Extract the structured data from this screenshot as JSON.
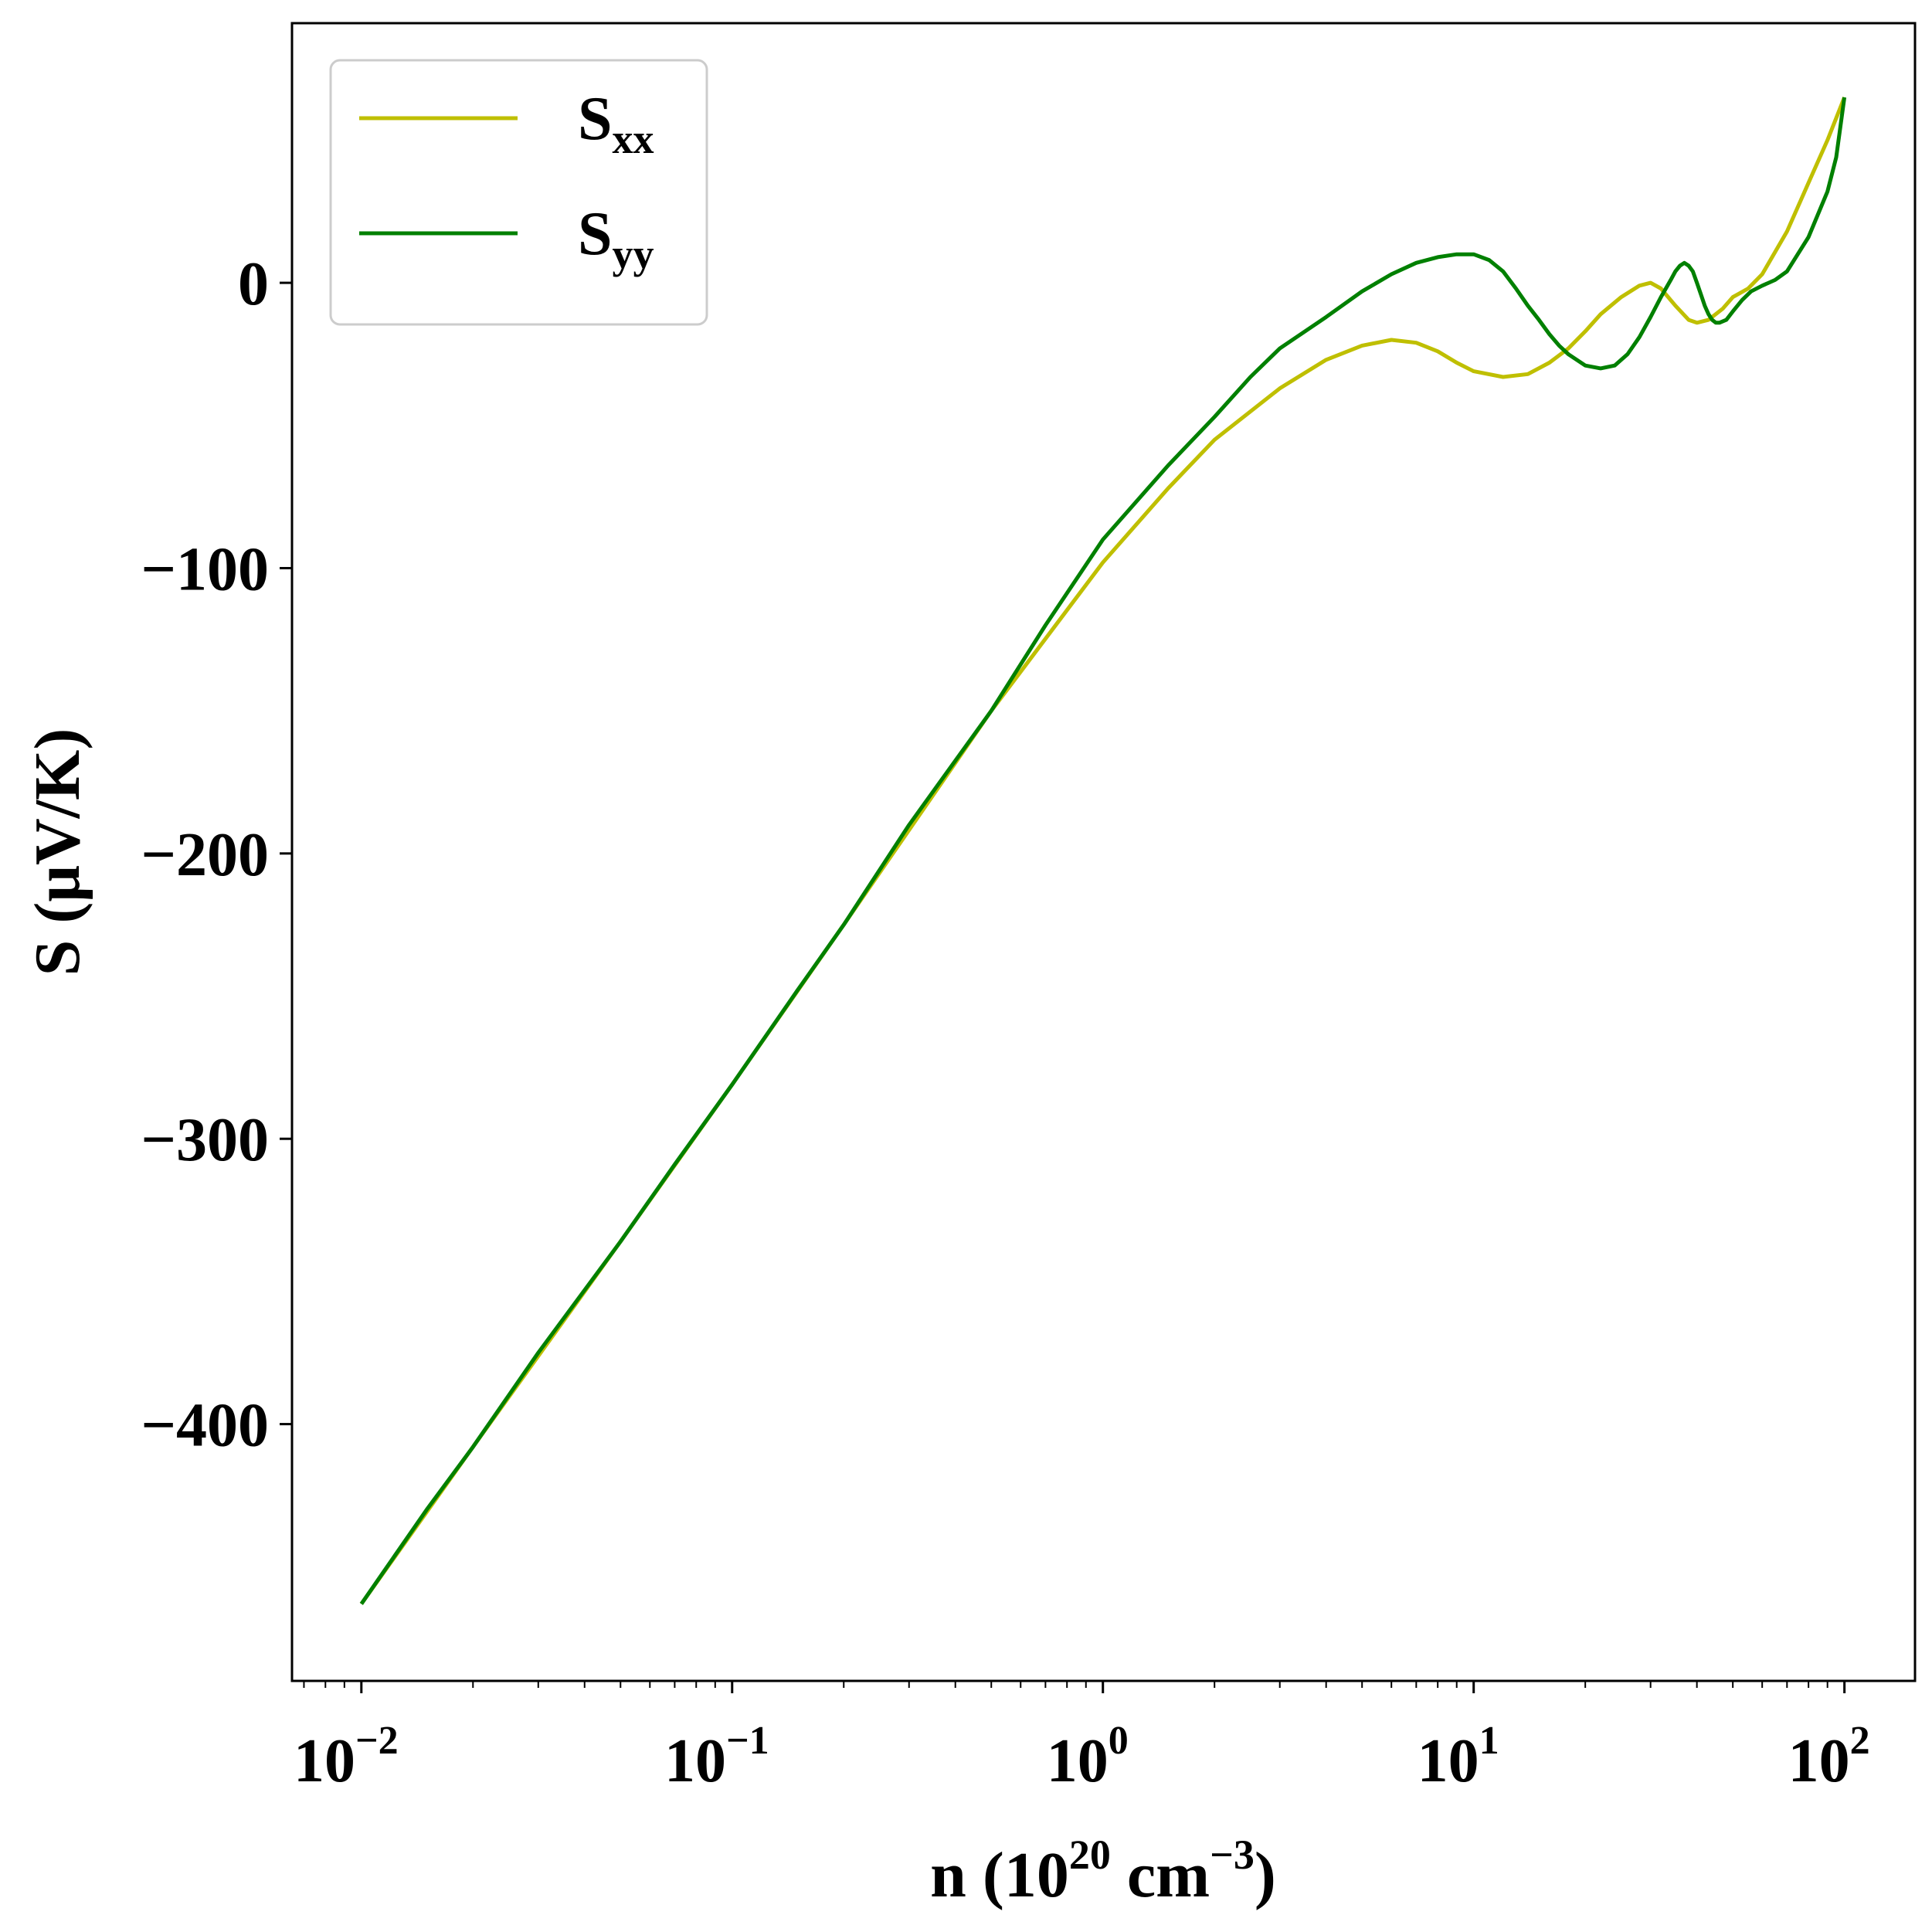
{
  "chart_data": {
    "type": "line",
    "xscale": "log",
    "xlim": [
      0.0065,
      155
    ],
    "ylim": [
      -490,
      91
    ],
    "xlabel": {
      "main": "n (10",
      "sup1": "20",
      "mid": " cm",
      "sup2": "−3",
      "end": ")"
    },
    "ylabel": "S (μV/K)",
    "x_ticks": [
      {
        "value": 0.01,
        "base": "10",
        "exp": "−2"
      },
      {
        "value": 0.1,
        "base": "10",
        "exp": "−1"
      },
      {
        "value": 1,
        "base": "10",
        "exp": "0"
      },
      {
        "value": 10,
        "base": "10",
        "exp": "1"
      },
      {
        "value": 100,
        "base": "10",
        "exp": "2"
      }
    ],
    "y_ticks": [
      {
        "value": 0,
        "label": "0"
      },
      {
        "value": -100,
        "label": "−100"
      },
      {
        "value": -200,
        "label": "−200"
      },
      {
        "value": -300,
        "label": "−300"
      },
      {
        "value": -400,
        "label": "−400"
      }
    ],
    "grid": false,
    "legend_position": "top-left",
    "series": [
      {
        "name": "S",
        "subscript": "xx",
        "color": "#bfbf00",
        "points": [
          [
            0.01,
            -463
          ],
          [
            0.02,
            -408
          ],
          [
            0.05,
            -336
          ],
          [
            0.1,
            -281
          ],
          [
            0.2,
            -225
          ],
          [
            0.5,
            -150
          ],
          [
            1,
            -98
          ],
          [
            1.5,
            -72
          ],
          [
            2,
            -55
          ],
          [
            3,
            -37
          ],
          [
            4,
            -27
          ],
          [
            5,
            -22
          ],
          [
            6,
            -20
          ],
          [
            7,
            -21
          ],
          [
            8,
            -24
          ],
          [
            9,
            -28
          ],
          [
            10,
            -31
          ],
          [
            12,
            -33
          ],
          [
            14,
            -32
          ],
          [
            16,
            -28
          ],
          [
            18,
            -23
          ],
          [
            20,
            -17
          ],
          [
            22,
            -11
          ],
          [
            25,
            -5
          ],
          [
            28,
            -1
          ],
          [
            30,
            0
          ],
          [
            32,
            -2
          ],
          [
            35,
            -8
          ],
          [
            38,
            -13
          ],
          [
            40,
            -14
          ],
          [
            43,
            -13
          ],
          [
            47,
            -9
          ],
          [
            50,
            -5
          ],
          [
            55,
            -2
          ],
          [
            60,
            3
          ],
          [
            70,
            18
          ],
          [
            80,
            35
          ],
          [
            90,
            50
          ],
          [
            100,
            65
          ]
        ]
      },
      {
        "name": "S",
        "subscript": "yy",
        "color": "#008000",
        "points": [
          [
            0.01,
            -463
          ],
          [
            0.015,
            -430
          ],
          [
            0.02,
            -408
          ],
          [
            0.03,
            -375
          ],
          [
            0.05,
            -336
          ],
          [
            0.07,
            -309
          ],
          [
            0.1,
            -281
          ],
          [
            0.15,
            -248
          ],
          [
            0.2,
            -225
          ],
          [
            0.3,
            -190
          ],
          [
            0.5,
            -150
          ],
          [
            0.7,
            -120
          ],
          [
            1,
            -90
          ],
          [
            1.5,
            -64
          ],
          [
            2,
            -47
          ],
          [
            2.5,
            -33
          ],
          [
            3,
            -23
          ],
          [
            4,
            -12
          ],
          [
            5,
            -3
          ],
          [
            6,
            3
          ],
          [
            7,
            7
          ],
          [
            8,
            9
          ],
          [
            9,
            10
          ],
          [
            10,
            10
          ],
          [
            11,
            8
          ],
          [
            12,
            4
          ],
          [
            13,
            -2
          ],
          [
            14,
            -8
          ],
          [
            15,
            -13
          ],
          [
            16,
            -18
          ],
          [
            17,
            -22
          ],
          [
            18,
            -25
          ],
          [
            20,
            -29
          ],
          [
            22,
            -30
          ],
          [
            24,
            -29
          ],
          [
            26,
            -25
          ],
          [
            28,
            -19
          ],
          [
            30,
            -12
          ],
          [
            32,
            -5
          ],
          [
            34,
            1
          ],
          [
            35,
            4
          ],
          [
            36,
            6
          ],
          [
            37,
            7
          ],
          [
            38,
            6
          ],
          [
            39,
            4
          ],
          [
            40,
            0
          ],
          [
            41,
            -4
          ],
          [
            42,
            -8
          ],
          [
            43,
            -11
          ],
          [
            44,
            -13
          ],
          [
            45,
            -14
          ],
          [
            46,
            -14
          ],
          [
            48,
            -13
          ],
          [
            50,
            -10
          ],
          [
            53,
            -6
          ],
          [
            56,
            -3
          ],
          [
            60,
            -1
          ],
          [
            65,
            1
          ],
          [
            70,
            4
          ],
          [
            80,
            16
          ],
          [
            90,
            32
          ],
          [
            95,
            44
          ],
          [
            100,
            65
          ]
        ]
      }
    ]
  }
}
